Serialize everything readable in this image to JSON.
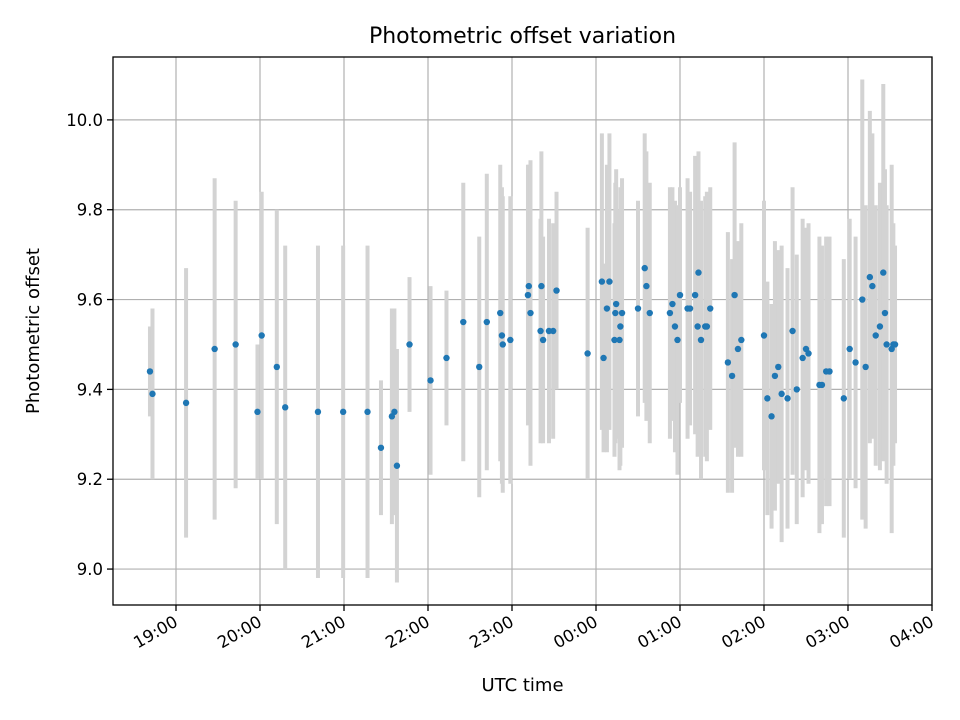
{
  "chart_data": {
    "type": "scatter",
    "title": "Photometric offset variation",
    "xlabel": "UTC time",
    "ylabel": "Photometric offset",
    "xlim": [
      18.25,
      28.0
    ],
    "ylim": [
      8.92,
      10.14
    ],
    "grid": true,
    "x_tick_hours": [
      19,
      20,
      21,
      22,
      23,
      24,
      25,
      26,
      27,
      28
    ],
    "x_tick_labels": [
      "19:00",
      "20:00",
      "21:00",
      "22:00",
      "23:00",
      "00:00",
      "01:00",
      "02:00",
      "03:00",
      "04:00"
    ],
    "y_ticks": [
      9.0,
      9.2,
      9.4,
      9.6,
      9.8,
      10.0
    ],
    "y_tick_labels": [
      "9.0",
      "9.2",
      "9.4",
      "9.6",
      "9.8",
      "10.0"
    ],
    "errorbar_color": "#d3d3d3",
    "marker_color": "#1f77b4",
    "series": [
      {
        "x_hours": [
          18.69,
          18.72,
          19.12,
          19.46,
          19.71,
          19.97,
          20.02,
          20.2,
          20.3,
          20.69,
          20.99,
          21.28,
          21.44,
          21.57,
          21.6,
          21.63,
          21.78,
          22.03,
          22.22,
          22.42,
          22.61,
          22.7,
          22.86,
          22.88,
          22.89,
          22.98,
          23.19,
          23.2,
          23.22,
          23.34,
          23.35,
          23.37,
          23.44,
          23.49,
          23.53,
          23.9,
          24.07,
          24.09,
          24.13,
          24.16,
          24.22,
          24.23,
          24.24,
          24.28,
          24.29,
          24.31,
          24.5,
          24.58,
          24.6,
          24.64,
          24.88,
          24.91,
          24.94,
          24.97,
          25.0,
          25.09,
          25.12,
          25.18,
          25.21,
          25.22,
          25.25,
          25.3,
          25.32,
          25.36,
          25.57,
          25.62,
          25.65,
          25.69,
          25.73,
          26.0,
          26.04,
          26.09,
          26.13,
          26.17,
          26.21,
          26.28,
          26.34,
          26.39,
          26.46,
          26.5,
          26.53,
          26.66,
          26.69,
          26.74,
          26.78,
          26.95,
          27.02,
          27.09,
          27.17,
          27.21,
          27.26,
          27.29,
          27.33,
          27.38,
          27.42,
          27.44,
          27.46,
          27.52,
          27.54,
          27.56
        ],
        "y": [
          9.44,
          9.39,
          9.37,
          9.49,
          9.5,
          9.35,
          9.52,
          9.45,
          9.36,
          9.35,
          9.35,
          9.35,
          9.27,
          9.34,
          9.35,
          9.23,
          9.5,
          9.42,
          9.47,
          9.55,
          9.45,
          9.55,
          9.57,
          9.52,
          9.5,
          9.51,
          9.61,
          9.63,
          9.57,
          9.53,
          9.63,
          9.51,
          9.53,
          9.53,
          9.62,
          9.48,
          9.64,
          9.47,
          9.58,
          9.64,
          9.51,
          9.57,
          9.59,
          9.51,
          9.54,
          9.57,
          9.58,
          9.67,
          9.63,
          9.57,
          9.57,
          9.59,
          9.54,
          9.51,
          9.61,
          9.58,
          9.58,
          9.61,
          9.54,
          9.66,
          9.51,
          9.54,
          9.54,
          9.58,
          9.46,
          9.43,
          9.61,
          9.49,
          9.51,
          9.52,
          9.38,
          9.34,
          9.43,
          9.45,
          9.39,
          9.38,
          9.53,
          9.4,
          9.47,
          9.49,
          9.48,
          9.41,
          9.41,
          9.44,
          9.44,
          9.38,
          9.49,
          9.46,
          9.6,
          9.45,
          9.65,
          9.63,
          9.52,
          9.54,
          9.66,
          9.57,
          9.5,
          9.49,
          9.5,
          9.5
        ],
        "y_err": [
          0.1,
          0.19,
          0.3,
          0.38,
          0.32,
          0.15,
          0.32,
          0.35,
          0.36,
          0.37,
          0.37,
          0.37,
          0.15,
          0.24,
          0.23,
          0.26,
          0.15,
          0.21,
          0.15,
          0.31,
          0.29,
          0.33,
          0.33,
          0.33,
          0.33,
          0.32,
          0.29,
          0.27,
          0.34,
          0.25,
          0.3,
          0.23,
          0.25,
          0.24,
          0.22,
          0.28,
          0.33,
          0.21,
          0.32,
          0.33,
          0.26,
          0.29,
          0.3,
          0.29,
          0.31,
          0.3,
          0.24,
          0.3,
          0.3,
          0.29,
          0.28,
          0.26,
          0.28,
          0.3,
          0.24,
          0.29,
          0.26,
          0.31,
          0.29,
          0.27,
          0.31,
          0.29,
          0.3,
          0.27,
          0.29,
          0.26,
          0.34,
          0.24,
          0.26,
          0.3,
          0.26,
          0.25,
          0.3,
          0.26,
          0.33,
          0.29,
          0.32,
          0.3,
          0.31,
          0.27,
          0.29,
          0.33,
          0.31,
          0.3,
          0.3,
          0.31,
          0.29,
          0.28,
          0.49,
          0.36,
          0.37,
          0.34,
          0.29,
          0.32,
          0.42,
          0.32,
          0.31,
          0.41,
          0.27,
          0.22
        ]
      }
    ]
  }
}
